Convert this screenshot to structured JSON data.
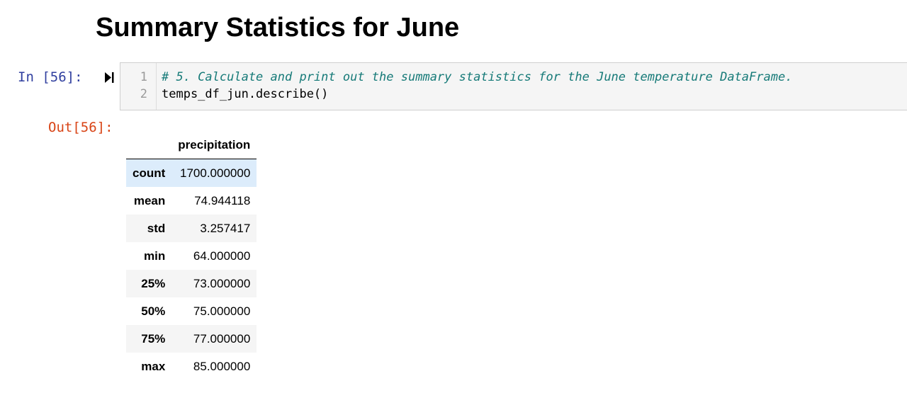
{
  "heading": "Summary Statistics for June",
  "input_cell": {
    "prompt": "In [56]:",
    "run_icon": "run-cell-icon",
    "line_numbers": [
      "1",
      "2"
    ],
    "code_lines": [
      "# 5. Calculate and print out the summary statistics for the June temperature DataFrame.",
      "temps_df_jun.describe()"
    ]
  },
  "output_cell": {
    "prompt": "Out[56]:",
    "table": {
      "index_header": "",
      "column_header": "precipitation",
      "rows": [
        {
          "label": "count",
          "value": "1700.000000"
        },
        {
          "label": "mean",
          "value": "74.944118"
        },
        {
          "label": "std",
          "value": "3.257417"
        },
        {
          "label": "min",
          "value": "64.000000"
        },
        {
          "label": "25%",
          "value": "73.000000"
        },
        {
          "label": "50%",
          "value": "75.000000"
        },
        {
          "label": "75%",
          "value": "77.000000"
        },
        {
          "label": "max",
          "value": "85.000000"
        }
      ]
    }
  },
  "colors": {
    "in_prompt": "#303f9f",
    "out_prompt": "#d84315",
    "comment": "#167a78",
    "hover_row": "#dcecfb",
    "stripe_row": "#f5f5f5"
  }
}
